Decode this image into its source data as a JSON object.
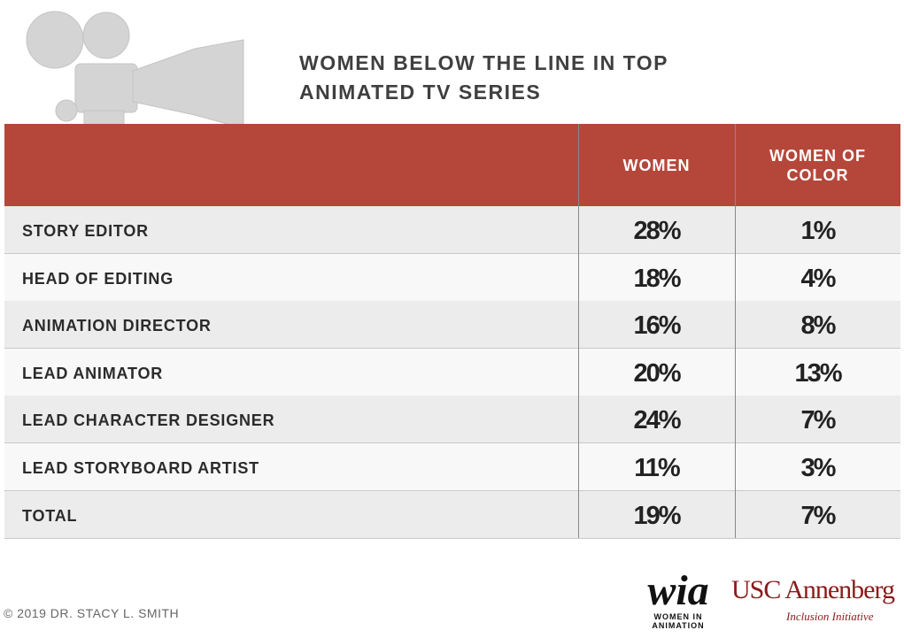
{
  "title": "WOMEN BELOW THE LINE IN TOP ANIMATED TV SERIES",
  "table": {
    "header": [
      "WOMEN",
      "WOMEN OF COLOR"
    ],
    "rows": [
      [
        "STORY EDITOR",
        "28%",
        "1%"
      ],
      [
        "HEAD OF EDITING",
        "18%",
        "4%"
      ],
      [
        "ANIMATION DIRECTOR",
        "16%",
        "8%"
      ],
      [
        "LEAD ANIMATOR",
        "20%",
        "13%"
      ],
      [
        "LEAD CHARACTER DESIGNER",
        "24%",
        "7%"
      ],
      [
        "LEAD STORYBOARD ARTIST",
        "11%",
        "3%"
      ],
      [
        "TOTAL",
        "19%",
        "7%"
      ]
    ]
  },
  "footer": {
    "copyright": "© 2019 DR. STACY L. SMITH",
    "logos": {
      "wia": "wia",
      "wia_sub": "WOMEN IN ANIMATION",
      "usc": "USC Annenberg",
      "usc_sub": "Inclusion Initiative"
    }
  }
}
